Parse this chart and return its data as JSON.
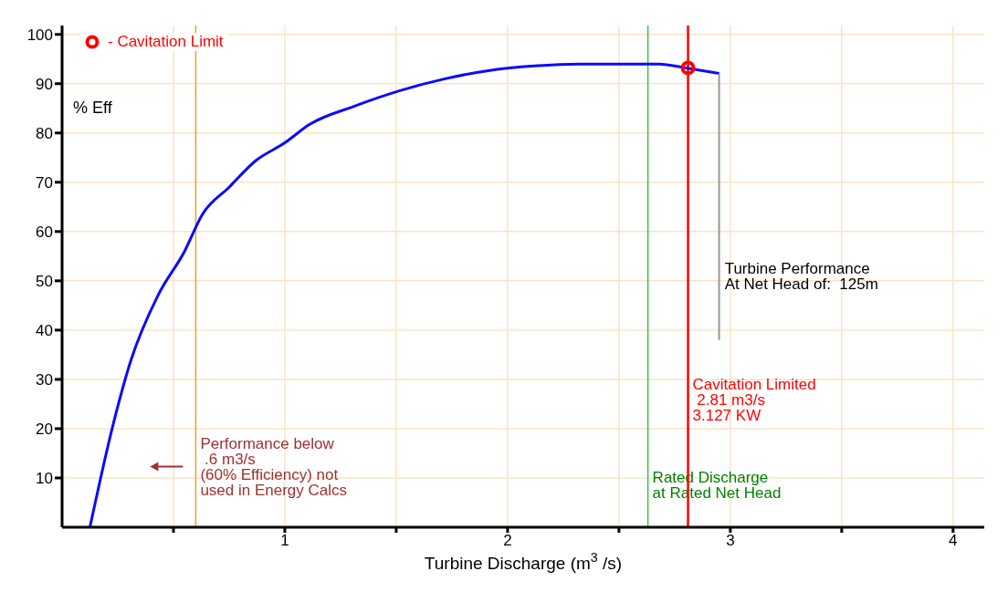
{
  "chart_data": {
    "type": "line",
    "xlabel": "Turbine Discharge (m$^{3}$ /s)",
    "ylabel": "% Eff",
    "xlim": [
      0,
      4.14
    ],
    "ylim": [
      0,
      101.8
    ],
    "xticks": [
      {
        "value": 0.5,
        "label": null
      },
      1,
      {
        "value": 1.5,
        "label": null
      },
      2,
      {
        "value": 2.5,
        "label": null
      },
      3,
      {
        "value": 3.5,
        "label": null
      },
      4
    ],
    "yticks": [
      10,
      20,
      30,
      40,
      50,
      60,
      70,
      80,
      90,
      100
    ],
    "grid": true,
    "legend": "top left",
    "series": [
      {
        "type": "line",
        "color": "#0a0aff",
        "marker": "none",
        "line_style": "solid",
        "x": [
          0.125,
          0.23,
          0.31,
          0.43,
          0.55,
          0.63,
          0.75,
          0.87,
          1.0,
          1.11,
          1.31,
          1.51,
          1.71,
          1.92,
          2.12,
          2.32,
          2.52,
          2.68,
          2.8,
          2.95
        ],
        "values": [
          0,
          21,
          34,
          47,
          56,
          63.5,
          69,
          74.4,
          78,
          81.7,
          85.4,
          88.5,
          90.9,
          92.7,
          93.6,
          94,
          94,
          94,
          93.2,
          92.1
        ]
      },
      {
        "type": "scatter",
        "name": "- Cavitation Limit",
        "color": "#ff0000",
        "marker": "circle",
        "x": [
          2.81
        ],
        "values": [
          93.2
        ]
      }
    ],
    "ref_lines": [
      {
        "axis": "x",
        "value": 0.6,
        "label": "Performance below\n .6 m3/s\n(60% Efficiency) not\nused in Energy Calcs",
        "color": "#f0a020"
      },
      {
        "axis": "x",
        "value": 2.63,
        "label": "Rated Discharge\nat Rated Net Head",
        "color": "#33cc33"
      },
      {
        "axis": "x",
        "value": 2.81,
        "label": "Cavitation Limited\n 2.81 m3/s\n3.127 KW",
        "color": "#ff0000"
      }
    ],
    "annotations": [
      "Turbine Performance\nAt Net Head of:  125m"
    ]
  }
}
